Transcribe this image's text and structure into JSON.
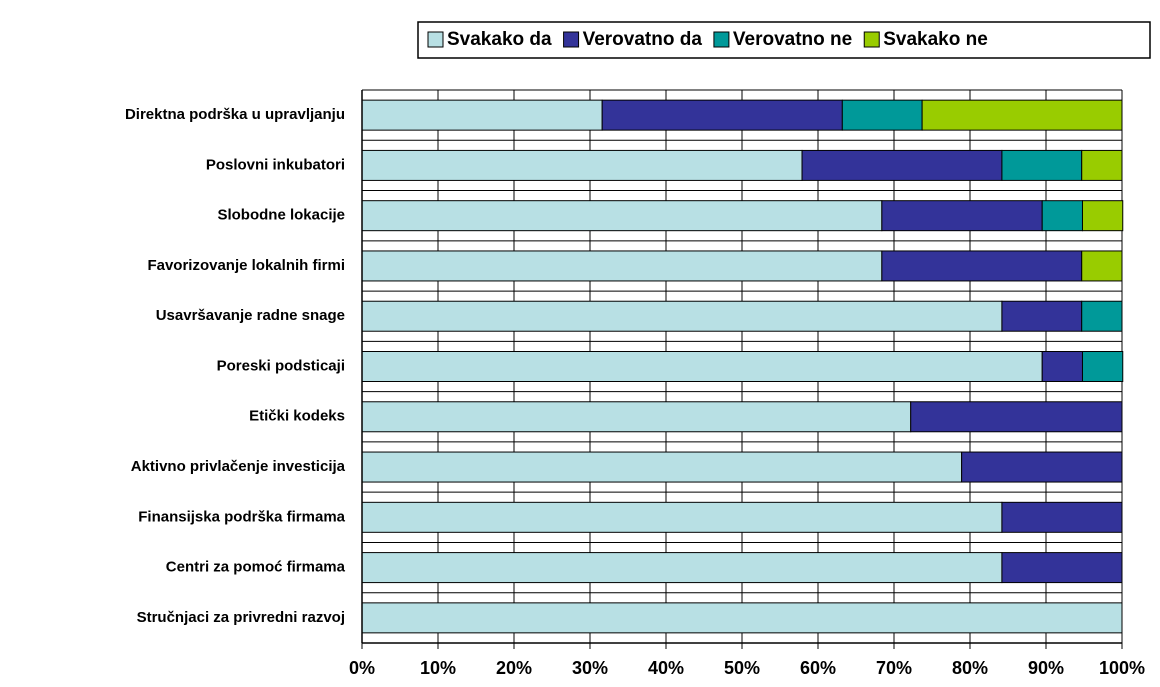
{
  "chart_data": {
    "type": "stacked_barh",
    "categories": [
      "Direktna podrška u upravljanju",
      "Poslovni inkubatori",
      "Slobodne lokacije",
      "Favorizovanje lokalnih firmi",
      "Usavršavanje radne snage",
      "Poreski podsticaji",
      "Etički kodeks",
      "Aktivno privlačenje investicija",
      "Finansijska podrška firmama",
      "Centri za pomoć firmama",
      "Stručnjaci za privredni razvoj"
    ],
    "series": [
      {
        "name": "Svakako da",
        "color": "#b8e0e4",
        "values": [
          31.6,
          57.9,
          68.4,
          68.4,
          84.2,
          89.5,
          72.2,
          78.9,
          84.2,
          84.2,
          100
        ]
      },
      {
        "name": "Verovatno da",
        "color": "#333399",
        "values": [
          31.6,
          26.3,
          21.1,
          26.3,
          10.5,
          5.3,
          27.8,
          21.1,
          15.8,
          15.8,
          0
        ]
      },
      {
        "name": "Verovatno ne",
        "color": "#009999",
        "values": [
          10.5,
          10.5,
          5.3,
          0,
          5.3,
          5.3,
          0,
          0,
          0,
          0,
          0
        ]
      },
      {
        "name": "Svakako ne",
        "color": "#99cc00",
        "values": [
          26.3,
          5.3,
          5.3,
          5.3,
          0,
          0,
          0,
          0,
          0,
          0,
          0
        ]
      }
    ],
    "xlim": [
      0,
      100
    ],
    "xticks": [
      {
        "value": 0,
        "label": "0%"
      },
      {
        "value": 10,
        "label": "10%"
      },
      {
        "value": 20,
        "label": "20%"
      },
      {
        "value": 30,
        "label": "30%"
      },
      {
        "value": 40,
        "label": "40%"
      },
      {
        "value": 50,
        "label": "50%"
      },
      {
        "value": 60,
        "label": "60%"
      },
      {
        "value": 70,
        "label": "70%"
      },
      {
        "value": 80,
        "label": "80%"
      },
      {
        "value": 90,
        "label": "90%"
      },
      {
        "value": 100,
        "label": "100%"
      }
    ],
    "grid": true,
    "legend": "top-right"
  }
}
